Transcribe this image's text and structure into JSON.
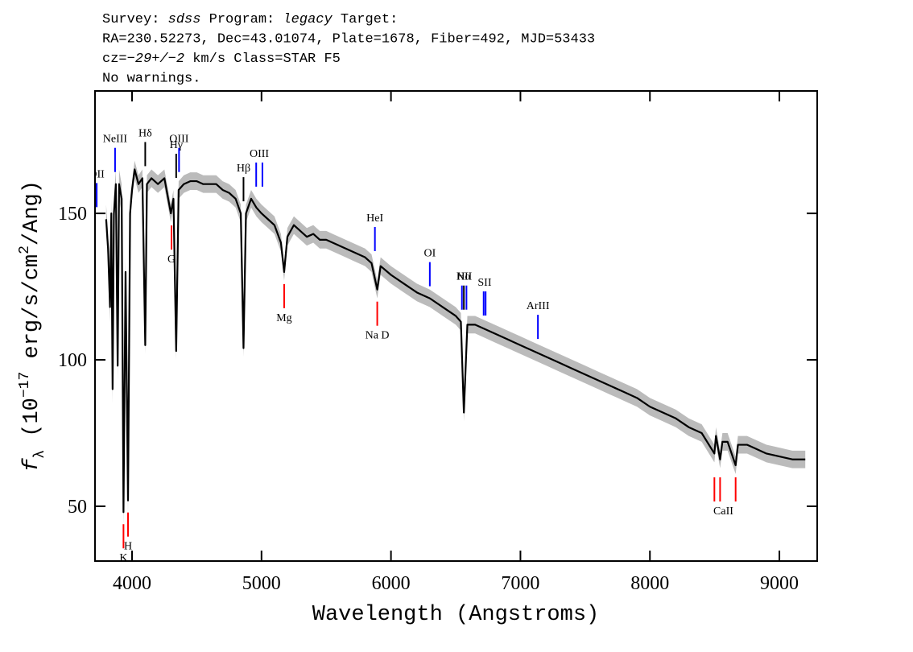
{
  "chart_data": {
    "type": "line",
    "title_lines": [
      [
        "Survey: ",
        "sdss",
        " Program: ",
        "legacy",
        " Target:"
      ],
      [
        "RA=230.52273, Dec=43.01074, Plate=1678, Fiber=492, MJD=53433"
      ],
      [
        "cz=",
        "−29+/−2",
        " km/s Class=STAR F5"
      ],
      [
        "No warnings."
      ]
    ],
    "xlabel": "Wavelength (Angstroms)",
    "ylabel_parts": [
      "f",
      "λ",
      " (10",
      "−17",
      " erg/s/cm",
      "2",
      "/Ang)"
    ],
    "xlim": [
      3714,
      9292
    ],
    "ylim": [
      31.3,
      191.8
    ],
    "xticks": [
      4000,
      5000,
      6000,
      7000,
      8000,
      9000
    ],
    "yticks": [
      50,
      100,
      150
    ],
    "color": "#000000",
    "error_color": "#bbbbbb",
    "x": [
      3800,
      3815,
      3830,
      3840,
      3850,
      3860,
      3875,
      3889,
      3900,
      3920,
      3934,
      3950,
      3969,
      3985,
      4000,
      4020,
      4050,
      4080,
      4102,
      4115,
      4150,
      4200,
      4250,
      4300,
      4320,
      4341,
      4360,
      4400,
      4450,
      4500,
      4550,
      4600,
      4650,
      4700,
      4750,
      4800,
      4840,
      4861,
      4880,
      4920,
      4960,
      5000,
      5050,
      5100,
      5150,
      5175,
      5200,
      5250,
      5300,
      5350,
      5400,
      5450,
      5500,
      5550,
      5600,
      5650,
      5700,
      5750,
      5800,
      5850,
      5894,
      5920,
      6000,
      6100,
      6200,
      6300,
      6400,
      6500,
      6540,
      6563,
      6590,
      6650,
      6700,
      6800,
      6900,
      7000,
      7100,
      7200,
      7300,
      7400,
      7500,
      7600,
      7700,
      7800,
      7900,
      8000,
      8100,
      8200,
      8300,
      8400,
      8498,
      8510,
      8542,
      8560,
      8600,
      8662,
      8680,
      8750,
      8800,
      8900,
      9000,
      9100,
      9200
    ],
    "values": [
      148,
      138,
      118,
      150,
      90,
      150,
      160,
      98,
      160,
      155,
      48,
      130,
      52,
      150,
      158,
      165,
      160,
      162,
      105,
      160,
      162,
      160,
      162,
      150,
      155,
      103,
      158,
      160,
      161,
      161,
      160,
      160,
      160,
      158,
      157,
      155,
      150,
      104,
      150,
      155,
      152,
      150,
      148,
      146,
      140,
      130,
      142,
      146,
      144,
      142,
      143,
      141,
      141,
      140,
      139,
      138,
      137,
      136,
      135,
      133,
      124,
      132,
      129,
      126,
      123,
      121,
      118,
      115,
      113,
      82,
      112,
      112,
      111,
      109,
      107,
      105,
      103,
      101,
      99,
      97,
      95,
      93,
      91,
      89,
      87,
      84,
      82,
      80,
      77,
      75,
      68,
      74,
      66,
      72,
      72,
      64,
      71,
      71,
      70,
      68,
      67,
      66,
      66
    ],
    "errors": [
      5,
      5,
      5,
      5,
      5,
      5,
      5,
      5,
      5,
      5,
      5,
      5,
      5,
      5,
      3,
      3,
      3,
      3,
      3,
      3,
      3,
      3,
      3,
      3,
      3,
      3,
      3,
      3,
      3,
      3,
      3,
      3,
      3,
      3,
      3,
      3,
      3,
      3,
      3,
      3,
      3,
      3,
      3,
      3,
      3,
      3,
      3,
      3,
      3,
      3,
      3,
      3,
      3,
      3,
      3,
      3,
      3,
      3,
      3,
      3,
      3,
      3,
      3,
      3,
      3,
      3,
      3,
      3,
      3,
      3,
      3,
      3,
      3,
      3,
      3,
      3,
      3,
      3,
      3,
      3,
      3,
      3,
      3,
      3,
      3,
      3,
      3,
      3,
      3,
      3,
      3,
      3,
      3,
      3,
      3,
      3,
      3,
      3,
      3,
      3,
      3,
      3,
      3
    ],
    "lines": [
      {
        "label": "OII",
        "wavelengths": [
          3727
        ],
        "color": "#0000ff",
        "kind": "emission"
      },
      {
        "label": "NeIII",
        "wavelengths": [
          3869
        ],
        "color": "#0000ff",
        "kind": "emission"
      },
      {
        "label": "Hδ",
        "wavelengths": [
          4102
        ],
        "color": "#000000",
        "kind": "emission"
      },
      {
        "label": "Hγ",
        "wavelengths": [
          4341
        ],
        "color": "#000000",
        "kind": "emission"
      },
      {
        "label": "OIII",
        "wavelengths": [
          4363
        ],
        "color": "#0000ff",
        "kind": "emission"
      },
      {
        "label": "Hβ",
        "wavelengths": [
          4861
        ],
        "color": "#000000",
        "kind": "emission"
      },
      {
        "label": "OIII",
        "wavelengths": [
          4959,
          5007
        ],
        "color": "#0000ff",
        "kind": "emission"
      },
      {
        "label": "HeI",
        "wavelengths": [
          5876
        ],
        "color": "#0000ff",
        "kind": "emission"
      },
      {
        "label": "OI",
        "wavelengths": [
          6300
        ],
        "color": "#0000ff",
        "kind": "emission"
      },
      {
        "label": "NII",
        "wavelengths": [
          6548,
          6583
        ],
        "color": "#0000ff",
        "kind": "emission"
      },
      {
        "label": "Hα",
        "wavelengths": [
          6563
        ],
        "color": "#000000",
        "kind": "emission"
      },
      {
        "label": "SII",
        "wavelengths": [
          6716,
          6731
        ],
        "color": "#0000ff",
        "kind": "emission"
      },
      {
        "label": "ArIII",
        "wavelengths": [
          7135
        ],
        "color": "#0000ff",
        "kind": "emission"
      },
      {
        "label": "K",
        "wavelengths": [
          3934
        ],
        "color": "#ff0000",
        "kind": "absorption"
      },
      {
        "label": "H",
        "wavelengths": [
          3969
        ],
        "color": "#ff0000",
        "kind": "absorption"
      },
      {
        "label": "G",
        "wavelengths": [
          4305
        ],
        "color": "#ff0000",
        "kind": "absorption"
      },
      {
        "label": "Mg",
        "wavelengths": [
          5175
        ],
        "color": "#ff0000",
        "kind": "absorption"
      },
      {
        "label": "Na D",
        "wavelengths": [
          5894
        ],
        "color": "#ff0000",
        "kind": "absorption"
      },
      {
        "label": "CaII",
        "wavelengths": [
          8498,
          8542,
          8662
        ],
        "color": "#ff0000",
        "kind": "absorption"
      }
    ]
  }
}
